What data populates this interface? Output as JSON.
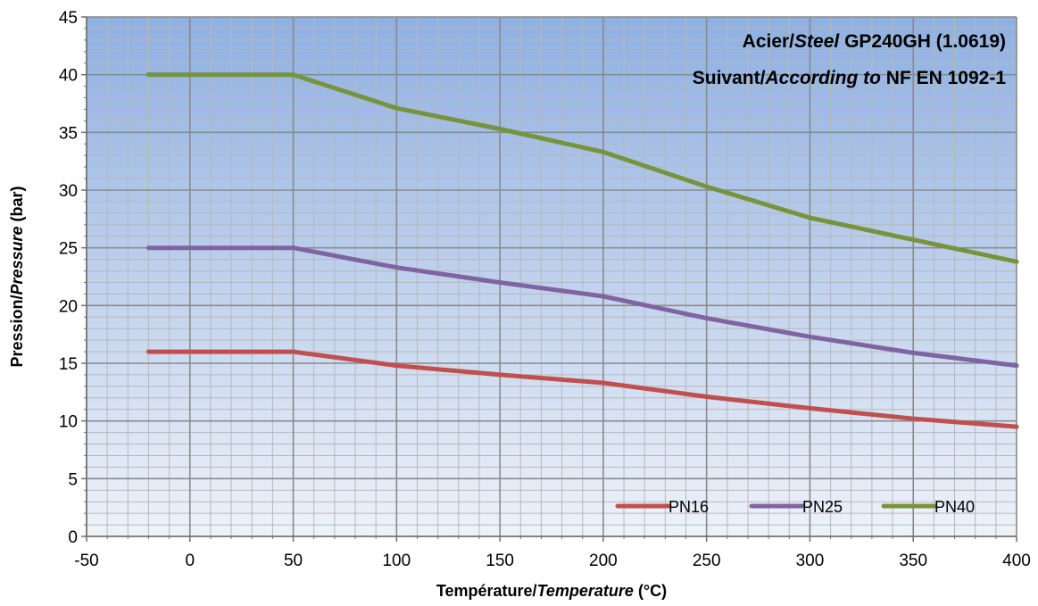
{
  "chart_data": {
    "type": "line",
    "title_lines": [
      [
        {
          "text": "Acier/",
          "italic": false
        },
        {
          "text": "Steel",
          "italic": true
        },
        {
          "text": " GP240GH (1.0619)",
          "italic": false
        }
      ],
      [
        {
          "text": "Suivant/",
          "italic": false
        },
        {
          "text": "According to",
          "italic": true
        },
        {
          "text": " NF EN 1092-1",
          "italic": false
        }
      ]
    ],
    "xlabel_parts": [
      {
        "text": "Température/",
        "italic": false
      },
      {
        "text": "Temperature",
        "italic": true
      },
      {
        "text": " (°C)",
        "italic": false
      }
    ],
    "ylabel_parts": [
      {
        "text": "Pression/",
        "italic": false
      },
      {
        "text": "Pressure",
        "italic": true
      },
      {
        "text": " (bar)",
        "italic": false
      }
    ],
    "xlim": [
      -50,
      400
    ],
    "ylim": [
      0,
      45
    ],
    "xticks": [
      -50,
      0,
      50,
      100,
      150,
      200,
      250,
      300,
      350,
      400
    ],
    "yticks": [
      0,
      5,
      10,
      15,
      20,
      25,
      30,
      35,
      40,
      45
    ],
    "x_minor_step": 10,
    "y_minor_step": 1,
    "grid": true,
    "legend_position": "bottom-right",
    "series": [
      {
        "name": "PN16",
        "color": "#c0504d",
        "x": [
          -20,
          50,
          100,
          150,
          200,
          250,
          300,
          350,
          400
        ],
        "y": [
          16,
          16,
          14.8,
          14.0,
          13.3,
          12.1,
          11.1,
          10.2,
          9.5
        ]
      },
      {
        "name": "PN25",
        "color": "#8064a2",
        "x": [
          -20,
          50,
          100,
          150,
          200,
          250,
          300,
          350,
          400
        ],
        "y": [
          25,
          25,
          23.3,
          22.0,
          20.8,
          18.9,
          17.3,
          15.9,
          14.8
        ]
      },
      {
        "name": "PN40",
        "color": "#77933c",
        "x": [
          -20,
          50,
          100,
          150,
          200,
          250,
          300,
          350,
          400
        ],
        "y": [
          40,
          40,
          37.1,
          35.3,
          33.3,
          30.3,
          27.6,
          25.7,
          23.8
        ]
      }
    ]
  }
}
